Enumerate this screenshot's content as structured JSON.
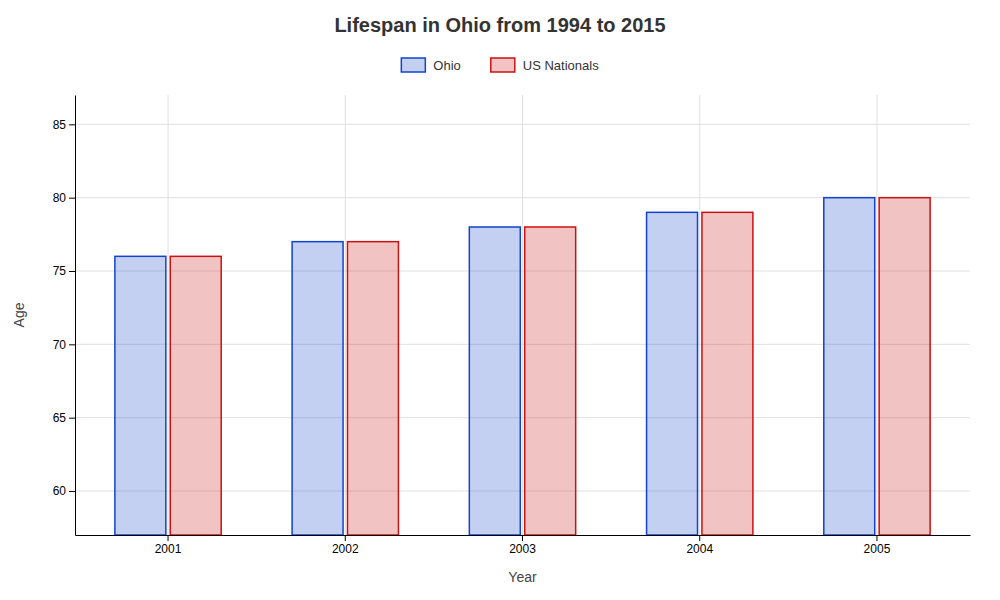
{
  "chart_data": {
    "type": "bar",
    "title": "Lifespan in Ohio from 1994 to 2015",
    "xlabel": "Year",
    "ylabel": "Age",
    "categories": [
      2001,
      2002,
      2003,
      2004,
      2005
    ],
    "series": [
      {
        "name": "Ohio",
        "color": "#1144cc",
        "values": [
          76,
          77,
          78,
          79,
          80
        ]
      },
      {
        "name": "US Nationals",
        "color": "#cc1111",
        "values": [
          76,
          77,
          78,
          79,
          80
        ]
      }
    ],
    "ylim": [
      57,
      87
    ],
    "yticks": [
      60,
      65,
      70,
      75,
      80,
      85
    ],
    "grid": true,
    "legend": "top"
  }
}
